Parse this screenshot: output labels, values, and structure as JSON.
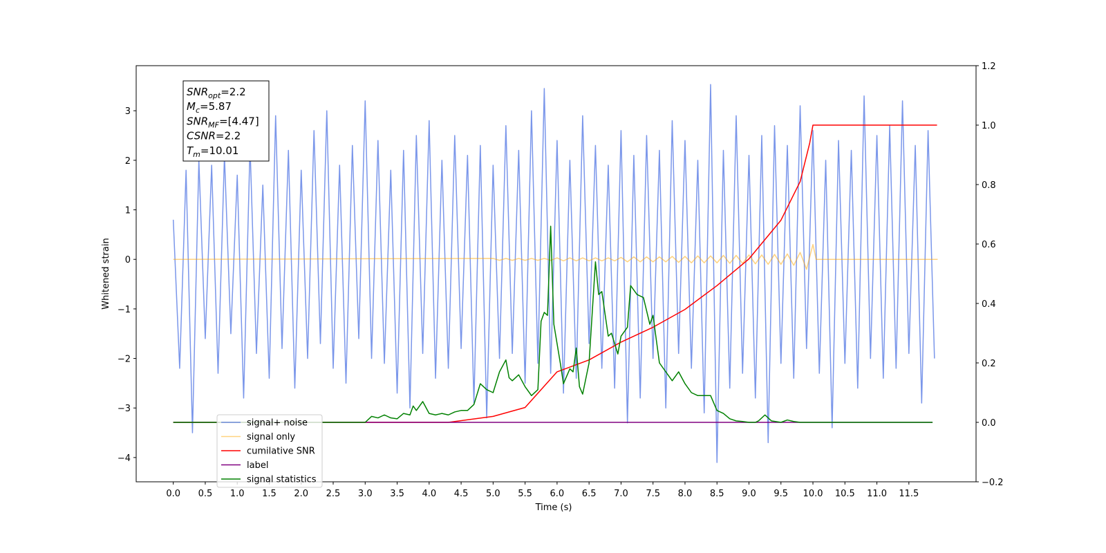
{
  "chart_data": {
    "type": "line",
    "xlabel": "Time (s)",
    "ylabel": "Whitened strain",
    "xlim": [
      -0.58,
      12.55
    ],
    "ylim": [
      -4.49,
      3.91
    ],
    "y2lim": [
      -0.2,
      1.2
    ],
    "xticks": [
      {
        "value": 0,
        "label": "0.0"
      },
      0.5,
      {
        "value": 1,
        "label": "1.0"
      },
      1.5,
      {
        "value": 2,
        "label": "2.0"
      },
      2.5,
      {
        "value": 3,
        "label": "3.0"
      },
      3.5,
      {
        "value": 4,
        "label": "4.0"
      },
      4.5,
      {
        "value": 5,
        "label": "5.0"
      },
      5.5,
      {
        "value": 6,
        "label": "6.0"
      },
      6.5,
      {
        "value": 7,
        "label": "7.0"
      },
      7.5,
      {
        "value": 8,
        "label": "8.0"
      },
      8.5,
      {
        "value": 9,
        "label": "9.0"
      },
      9.5,
      {
        "value": 10,
        "label": "10.0"
      },
      10.5,
      {
        "value": 11,
        "label": "11.0"
      },
      11.5
    ],
    "yticks": [
      {
        "value": -4,
        "label": "−4"
      },
      {
        "value": -3,
        "label": "−3"
      },
      {
        "value": -2,
        "label": "−2"
      },
      {
        "value": -1,
        "label": "−1"
      },
      0,
      1,
      2,
      3
    ],
    "y2ticks": [
      {
        "value": -0.2,
        "label": "−0.2"
      },
      {
        "value": 0,
        "label": "0.0"
      },
      {
        "value": 0.2,
        "label": "0.2"
      },
      {
        "value": 0.4,
        "label": "0.4"
      },
      {
        "value": 0.6,
        "label": "0.6"
      },
      {
        "value": 0.8,
        "label": "0.8"
      },
      {
        "value": 1,
        "label": "1.0"
      },
      {
        "value": 1.2,
        "label": "1.2"
      }
    ],
    "legend": "lower left",
    "annotation": [
      {
        "base": "SNR",
        "sub": "opt",
        "text": "=2.2"
      },
      {
        "base": "M",
        "sub": "c",
        "text": "=5.87"
      },
      {
        "base": "SNR",
        "sub": "MF",
        "text": "=[4.47]"
      },
      {
        "base": "CSNR",
        "sub": null,
        "text": "=2.2"
      },
      {
        "base": "T",
        "sub": "m",
        "text": "=10.01"
      }
    ],
    "series": [
      {
        "name": "signal+ noise",
        "color": "#4169e1",
        "alpha": 0.7,
        "x": [
          0.0,
          0.1,
          0.2,
          0.3,
          0.4,
          0.5,
          0.6,
          0.7,
          0.8,
          0.9,
          1.0,
          1.1,
          1.2,
          1.3,
          1.4,
          1.5,
          1.6,
          1.7,
          1.8,
          1.9,
          2.0,
          2.1,
          2.2,
          2.3,
          2.4,
          2.5,
          2.6,
          2.7,
          2.8,
          2.9,
          3.0,
          3.1,
          3.2,
          3.3,
          3.4,
          3.5,
          3.6,
          3.7,
          3.8,
          3.9,
          4.0,
          4.1,
          4.2,
          4.3,
          4.4,
          4.5,
          4.6,
          4.7,
          4.8,
          4.9,
          5.0,
          5.1,
          5.2,
          5.3,
          5.4,
          5.5,
          5.6,
          5.7,
          5.8,
          5.9,
          6.0,
          6.1,
          6.2,
          6.3,
          6.4,
          6.5,
          6.6,
          6.7,
          6.8,
          6.9,
          7.0,
          7.1,
          7.2,
          7.3,
          7.4,
          7.5,
          7.6,
          7.7,
          7.8,
          7.9,
          8.0,
          8.1,
          8.2,
          8.3,
          8.4,
          8.5,
          8.6,
          8.7,
          8.8,
          8.9,
          9.0,
          9.1,
          9.2,
          9.3,
          9.4,
          9.5,
          9.6,
          9.7,
          9.8,
          9.9,
          10.0,
          10.1,
          10.2,
          10.3,
          10.4,
          10.5,
          10.6,
          10.7,
          10.8,
          10.9,
          11.0,
          11.1,
          11.2,
          11.3,
          11.4,
          11.5,
          11.6,
          11.7,
          11.8,
          11.9
        ],
        "values": [
          0.8,
          -2.2,
          1.8,
          -3.5,
          2.0,
          -1.6,
          1.9,
          -2.3,
          2.1,
          -1.5,
          1.7,
          -2.8,
          2.3,
          -1.9,
          1.5,
          -2.4,
          2.9,
          -1.8,
          2.2,
          -2.6,
          1.8,
          -2.0,
          2.6,
          -1.7,
          3.0,
          -2.2,
          1.9,
          -2.5,
          2.3,
          -1.6,
          3.2,
          -2.0,
          2.4,
          -2.1,
          1.8,
          -2.7,
          2.2,
          -3.0,
          2.5,
          -1.9,
          2.8,
          -2.4,
          2.0,
          -2.2,
          2.5,
          -1.8,
          2.1,
          -2.9,
          2.3,
          -3.2,
          1.9,
          -2.0,
          2.7,
          -1.9,
          2.2,
          -2.5,
          3.0,
          -2.1,
          3.45,
          -2.3,
          2.4,
          -2.7,
          2.0,
          -2.4,
          2.9,
          -1.7,
          2.3,
          -2.2,
          1.9,
          -2.6,
          2.6,
          -3.3,
          2.1,
          -2.8,
          2.5,
          -2.0,
          2.2,
          -3.0,
          2.8,
          -1.9,
          2.4,
          -2.2,
          2.0,
          -3.1,
          3.53,
          -4.1,
          2.2,
          -2.6,
          2.9,
          -2.3,
          2.1,
          -2.8,
          2.5,
          -3.7,
          2.7,
          -2.1,
          2.3,
          -2.4,
          3.1,
          -1.8,
          2.6,
          -2.3,
          2.0,
          -3.4,
          2.4,
          -2.1,
          2.2,
          -2.6,
          3.3,
          -2.0,
          2.5,
          -2.4,
          2.7,
          -2.2,
          3.2,
          -1.9,
          2.3,
          -2.9,
          2.6,
          -2.0
        ]
      },
      {
        "name": "signal only",
        "color": "#ffa500",
        "alpha": 0.5,
        "x": [
          0,
          5.0,
          5.1,
          5.2,
          5.3,
          5.4,
          5.5,
          5.6,
          5.7,
          5.8,
          5.9,
          6.0,
          6.1,
          6.2,
          6.3,
          6.4,
          6.5,
          6.6,
          6.7,
          6.8,
          6.9,
          7.0,
          7.1,
          7.2,
          7.3,
          7.4,
          7.5,
          7.6,
          7.7,
          7.8,
          7.9,
          8.0,
          8.1,
          8.2,
          8.3,
          8.4,
          8.5,
          8.6,
          8.7,
          8.8,
          8.9,
          9.0,
          9.1,
          9.2,
          9.3,
          9.4,
          9.5,
          9.6,
          9.7,
          9.8,
          9.9,
          10.0,
          10.05,
          11.95
        ],
        "values": [
          0,
          0.02,
          -0.02,
          0.02,
          -0.02,
          0.02,
          -0.02,
          0.02,
          -0.02,
          0.02,
          -0.02,
          0.03,
          -0.03,
          0.03,
          -0.03,
          0.03,
          -0.03,
          0.03,
          -0.03,
          0.03,
          -0.03,
          0.04,
          -0.05,
          0.05,
          -0.05,
          0.05,
          -0.05,
          0.05,
          -0.05,
          0.06,
          -0.06,
          0.06,
          -0.07,
          0.07,
          -0.07,
          0.07,
          -0.07,
          0.08,
          -0.08,
          0.08,
          -0.08,
          0.09,
          -0.09,
          0.09,
          -0.1,
          0.1,
          -0.1,
          0.11,
          -0.12,
          0.14,
          -0.2,
          0.3,
          0,
          0
        ]
      },
      {
        "name": "cumilative SNR",
        "color": "#ff0000",
        "axis": "y2",
        "x": [
          0,
          4.3,
          5.0,
          5.5,
          6.0,
          6.5,
          7.0,
          7.5,
          8.0,
          8.5,
          9.0,
          9.5,
          9.8,
          9.95,
          10.0,
          11.94
        ],
        "values": [
          0,
          0,
          0.02,
          0.05,
          0.17,
          0.21,
          0.27,
          0.32,
          0.38,
          0.46,
          0.55,
          0.68,
          0.81,
          0.94,
          1.0,
          1.0
        ]
      },
      {
        "name": "label",
        "color": "#800080",
        "axis": "y2",
        "x": [
          0,
          11.87
        ],
        "values": [
          0,
          0
        ]
      },
      {
        "name": "signal statistics",
        "color": "#008000",
        "axis": "y2",
        "x": [
          0,
          3.0,
          3.1,
          3.2,
          3.3,
          3.4,
          3.5,
          3.6,
          3.7,
          3.75,
          3.8,
          3.9,
          4.0,
          4.1,
          4.2,
          4.3,
          4.4,
          4.5,
          4.6,
          4.7,
          4.8,
          4.9,
          5.0,
          5.1,
          5.2,
          5.25,
          5.3,
          5.4,
          5.5,
          5.6,
          5.7,
          5.75,
          5.8,
          5.85,
          5.9,
          5.95,
          6.05,
          6.1,
          6.2,
          6.25,
          6.3,
          6.35,
          6.4,
          6.5,
          6.6,
          6.65,
          6.7,
          6.8,
          6.85,
          6.95,
          7.0,
          7.1,
          7.15,
          7.25,
          7.35,
          7.45,
          7.5,
          7.6,
          7.7,
          7.8,
          7.9,
          8.0,
          8.1,
          8.2,
          8.3,
          8.4,
          8.5,
          8.6,
          8.7,
          8.8,
          8.9,
          9.0,
          9.1,
          9.15,
          9.25,
          9.35,
          9.5,
          9.6,
          9.7,
          9.8,
          11.87
        ],
        "values": [
          0,
          0,
          0.02,
          0.015,
          0.025,
          0.015,
          0.012,
          0.03,
          0.025,
          0.055,
          0.04,
          0.07,
          0.03,
          0.025,
          0.03,
          0.025,
          0.035,
          0.04,
          0.04,
          0.06,
          0.13,
          0.11,
          0.1,
          0.17,
          0.21,
          0.15,
          0.14,
          0.16,
          0.12,
          0.09,
          0.11,
          0.34,
          0.37,
          0.36,
          0.66,
          0.33,
          0.2,
          0.13,
          0.18,
          0.17,
          0.25,
          0.12,
          0.095,
          0.2,
          0.54,
          0.43,
          0.44,
          0.29,
          0.3,
          0.23,
          0.29,
          0.32,
          0.46,
          0.43,
          0.42,
          0.33,
          0.36,
          0.2,
          0.17,
          0.14,
          0.17,
          0.13,
          0.1,
          0.09,
          0.09,
          0.09,
          0.04,
          0.03,
          0.012,
          0.005,
          0.003,
          0,
          0,
          0.005,
          0.025,
          0.005,
          0,
          0.008,
          0.003,
          0,
          0
        ]
      }
    ]
  }
}
